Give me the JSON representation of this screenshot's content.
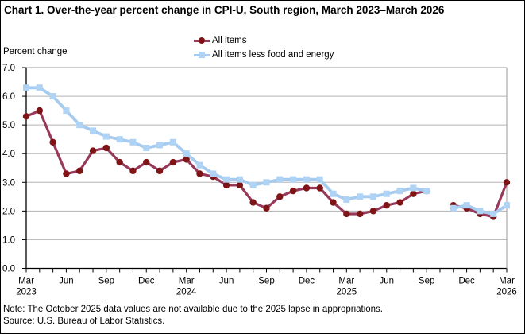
{
  "title": "Chart 1. Over-the-year percent change in CPI-U, South region, March 2023–March 2026",
  "axis_unit_label": "Percent change",
  "legend": [
    {
      "label": "All items"
    },
    {
      "label": "All items less food and energy"
    }
  ],
  "note": "Note: The October 2025 data values  are not available  due to the 2025 lapse in appropriations.",
  "source": "Source:  U.S. Bureau  of Labor  Statistics.",
  "colors": {
    "all_items_line": "#97395a",
    "all_items_marker": "#7f1416",
    "core_line": "#a6cbee",
    "core_marker": "#aed3f4",
    "gridline": "#b3b3b3",
    "plot_border": "#999999",
    "axis": "#000000"
  },
  "chart_data": {
    "type": "line",
    "title": "Chart 1. Over-the-year percent change in CPI-U, South region, March 2023–March 2026",
    "xlabel": "",
    "ylabel": "Percent change",
    "ylim": [
      0,
      7
    ],
    "y_ticks": [
      0,
      1,
      2,
      3,
      4,
      5,
      6,
      7
    ],
    "grid": true,
    "legend_position": "top",
    "missing_data_note": "October 2025 values not available (2025 lapse in appropriations)",
    "x": [
      "Mar 2023",
      "Apr 2023",
      "May 2023",
      "Jun 2023",
      "Jul 2023",
      "Aug 2023",
      "Sep 2023",
      "Oct 2023",
      "Nov 2023",
      "Dec 2023",
      "Jan 2024",
      "Feb 2024",
      "Mar 2024",
      "Apr 2024",
      "May 2024",
      "Jun 2024",
      "Jul 2024",
      "Aug 2024",
      "Sep 2024",
      "Oct 2024",
      "Nov 2024",
      "Dec 2024",
      "Jan 2025",
      "Feb 2025",
      "Mar 2025",
      "Apr 2025",
      "May 2025",
      "Jun 2025",
      "Jul 2025",
      "Aug 2025",
      "Sep 2025",
      "Oct 2025",
      "Nov 2025",
      "Dec 2025",
      "Jan 2026",
      "Feb 2026",
      "Mar 2026"
    ],
    "x_major_tick_interval": 3,
    "series": [
      {
        "name": "All items",
        "marker": "circle",
        "color": "#97395a",
        "marker_color": "#7f1416",
        "values": [
          5.3,
          5.5,
          4.4,
          3.3,
          3.4,
          4.1,
          4.2,
          3.7,
          3.4,
          3.7,
          3.4,
          3.7,
          3.8,
          3.3,
          3.2,
          2.9,
          2.9,
          2.3,
          2.1,
          2.5,
          2.7,
          2.8,
          2.8,
          2.3,
          1.9,
          1.9,
          2.0,
          2.2,
          2.3,
          2.6,
          2.7,
          null,
          2.2,
          2.1,
          1.9,
          1.8,
          3.0
        ]
      },
      {
        "name": "All items less food and energy",
        "marker": "square",
        "color": "#a6cbee",
        "marker_color": "#aed3f4",
        "values": [
          6.3,
          6.3,
          6.0,
          5.5,
          5.0,
          4.8,
          4.6,
          4.5,
          4.4,
          4.2,
          4.3,
          4.4,
          4.0,
          3.6,
          3.3,
          3.1,
          3.1,
          2.9,
          3.0,
          3.1,
          3.1,
          3.1,
          3.1,
          2.6,
          2.4,
          2.5,
          2.5,
          2.6,
          2.7,
          2.8,
          2.7,
          null,
          2.1,
          2.2,
          2.0,
          1.9,
          2.2
        ]
      }
    ]
  }
}
